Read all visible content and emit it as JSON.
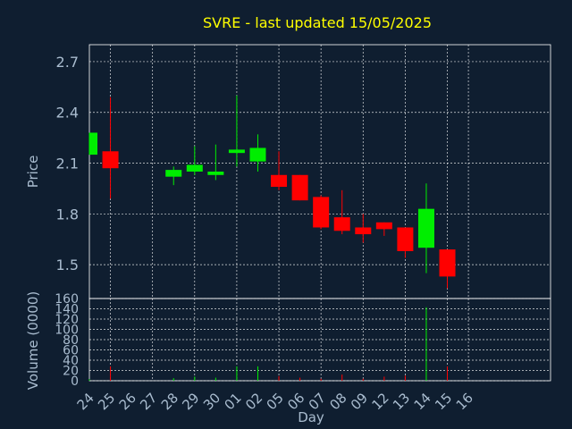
{
  "chart_data": [
    {
      "type": "candlestick",
      "title": "SVRE - last updated 15/05/2025",
      "ylabel": "Price",
      "ylim": [
        1.3,
        2.8
      ],
      "yticks": [
        "1.5",
        "1.8",
        "2.1",
        "2.4",
        "2.7"
      ],
      "colors": {
        "up": "#00ee00",
        "down": "#ff0000",
        "background": "#0f1e30",
        "text": "#a9bccf",
        "title": "#ffff00"
      },
      "grid": true,
      "candles": [
        {
          "x": "24",
          "open": 2.15,
          "high": 2.28,
          "low": 2.15,
          "close": 2.28
        },
        {
          "x": "25",
          "open": 2.17,
          "high": 2.49,
          "low": 1.89,
          "close": 2.07
        },
        {
          "x": "28",
          "open": 2.02,
          "high": 2.08,
          "low": 1.97,
          "close": 2.06
        },
        {
          "x": "29",
          "open": 2.05,
          "high": 2.2,
          "low": 2.03,
          "close": 2.09
        },
        {
          "x": "30",
          "open": 2.03,
          "high": 2.21,
          "low": 2.0,
          "close": 2.05
        },
        {
          "x": "01",
          "open": 2.16,
          "high": 2.5,
          "low": 2.08,
          "close": 2.18
        },
        {
          "x": "02",
          "open": 2.11,
          "high": 2.27,
          "low": 2.05,
          "close": 2.19
        },
        {
          "x": "05",
          "open": 2.03,
          "high": 2.17,
          "low": 1.94,
          "close": 1.96
        },
        {
          "x": "06",
          "open": 2.03,
          "high": 2.03,
          "low": 1.88,
          "close": 1.88
        },
        {
          "x": "07",
          "open": 1.9,
          "high": 1.91,
          "low": 1.71,
          "close": 1.72
        },
        {
          "x": "08",
          "open": 1.78,
          "high": 1.94,
          "low": 1.68,
          "close": 1.7
        },
        {
          "x": "09",
          "open": 1.72,
          "high": 1.8,
          "low": 1.63,
          "close": 1.68
        },
        {
          "x": "12",
          "open": 1.75,
          "high": 1.75,
          "low": 1.67,
          "close": 1.71
        },
        {
          "x": "13",
          "open": 1.72,
          "high": 1.72,
          "low": 1.54,
          "close": 1.58
        },
        {
          "x": "14",
          "open": 1.6,
          "high": 1.98,
          "low": 1.45,
          "close": 1.83
        },
        {
          "x": "15",
          "open": 1.59,
          "high": 1.59,
          "low": 1.36,
          "close": 1.43
        }
      ]
    },
    {
      "type": "bar",
      "xlabel": "Day",
      "ylabel": "Volume (0000)",
      "ylim": [
        0,
        160
      ],
      "yticks": [
        "0",
        "20",
        "40",
        "60",
        "80",
        "100",
        "120",
        "140",
        "160"
      ],
      "categories": [
        "24",
        "25",
        "26",
        "27",
        "28",
        "29",
        "30",
        "01",
        "02",
        "05",
        "06",
        "07",
        "08",
        "09",
        "12",
        "13",
        "14",
        "15",
        "16"
      ],
      "bars": [
        {
          "x": "24",
          "value": 3,
          "dir": "up"
        },
        {
          "x": "25",
          "value": 28,
          "dir": "down"
        },
        {
          "x": "28",
          "value": 5,
          "dir": "up"
        },
        {
          "x": "29",
          "value": 8,
          "dir": "up"
        },
        {
          "x": "30",
          "value": 6,
          "dir": "up"
        },
        {
          "x": "01",
          "value": 28,
          "dir": "up"
        },
        {
          "x": "02",
          "value": 28,
          "dir": "up"
        },
        {
          "x": "05",
          "value": 9,
          "dir": "down"
        },
        {
          "x": "06",
          "value": 6,
          "dir": "down"
        },
        {
          "x": "07",
          "value": 4,
          "dir": "down"
        },
        {
          "x": "08",
          "value": 12,
          "dir": "down"
        },
        {
          "x": "09",
          "value": 4,
          "dir": "down"
        },
        {
          "x": "12",
          "value": 8,
          "dir": "down"
        },
        {
          "x": "13",
          "value": 10,
          "dir": "down"
        },
        {
          "x": "14",
          "value": 143,
          "dir": "up"
        },
        {
          "x": "15",
          "value": 28,
          "dir": "down"
        }
      ]
    }
  ]
}
